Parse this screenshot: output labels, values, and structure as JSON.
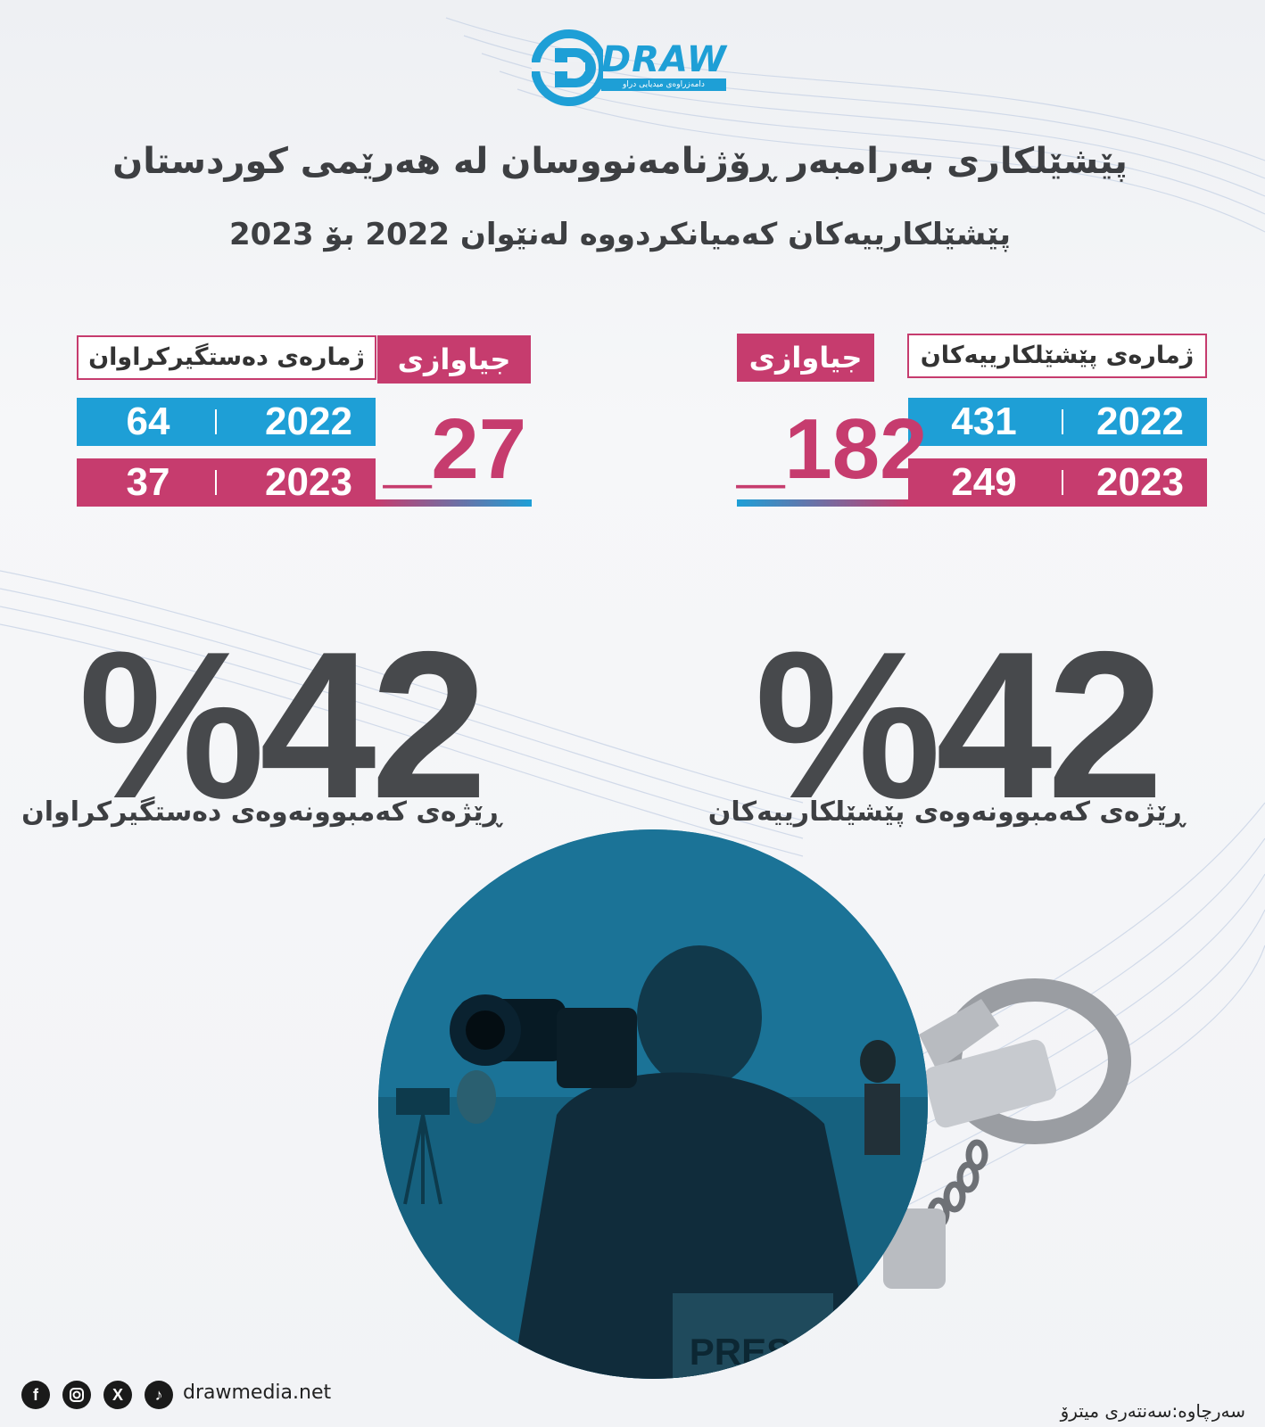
{
  "brand": {
    "logo_text": "DRAW",
    "logo_tagline": "دامەزراوەی میدیایی دراو",
    "accent_blue": "#1e9fd6",
    "accent_pink": "#c63c6e",
    "text_dark": "#47494c"
  },
  "title": "پێشێلکاری بەرامبەر ڕۆژنامەنووسان لە هەرێمی کوردستان",
  "subtitle": "پێشێلکارییەکان کەمیانکردووە لەنێوان 2022 بۆ 2023",
  "violations": {
    "label": "ژمارەی پێشێلکارییەکان",
    "diff_label": "جیاوازی",
    "rows": [
      {
        "year": "2022",
        "value": "431"
      },
      {
        "year": "2023",
        "value": "249"
      }
    ],
    "difference": "182",
    "difference_sign": "_",
    "percent": "42",
    "percent_sign": "%",
    "caption": "ڕێژەی کەمبوونەوەی پێشێلکارییەکان"
  },
  "arrests": {
    "label": "ژمارەی دەستگیرکراوان",
    "diff_label": "جیاوازی",
    "rows": [
      {
        "year": "2022",
        "value": "64"
      },
      {
        "year": "2023",
        "value": "37"
      }
    ],
    "difference": "27",
    "difference_sign": "_",
    "percent": "42",
    "percent_sign": "%",
    "caption": "ڕێژەی کەمبوونەوەی دەستگیرکراوان"
  },
  "photo": {
    "press_text": "PRESS"
  },
  "footer": {
    "icons": [
      "facebook-icon",
      "instagram-icon",
      "x-icon",
      "tiktok-icon"
    ],
    "website": "drawmedia.net",
    "source": "سەرچاوە:سەنتەری میترۆ"
  }
}
